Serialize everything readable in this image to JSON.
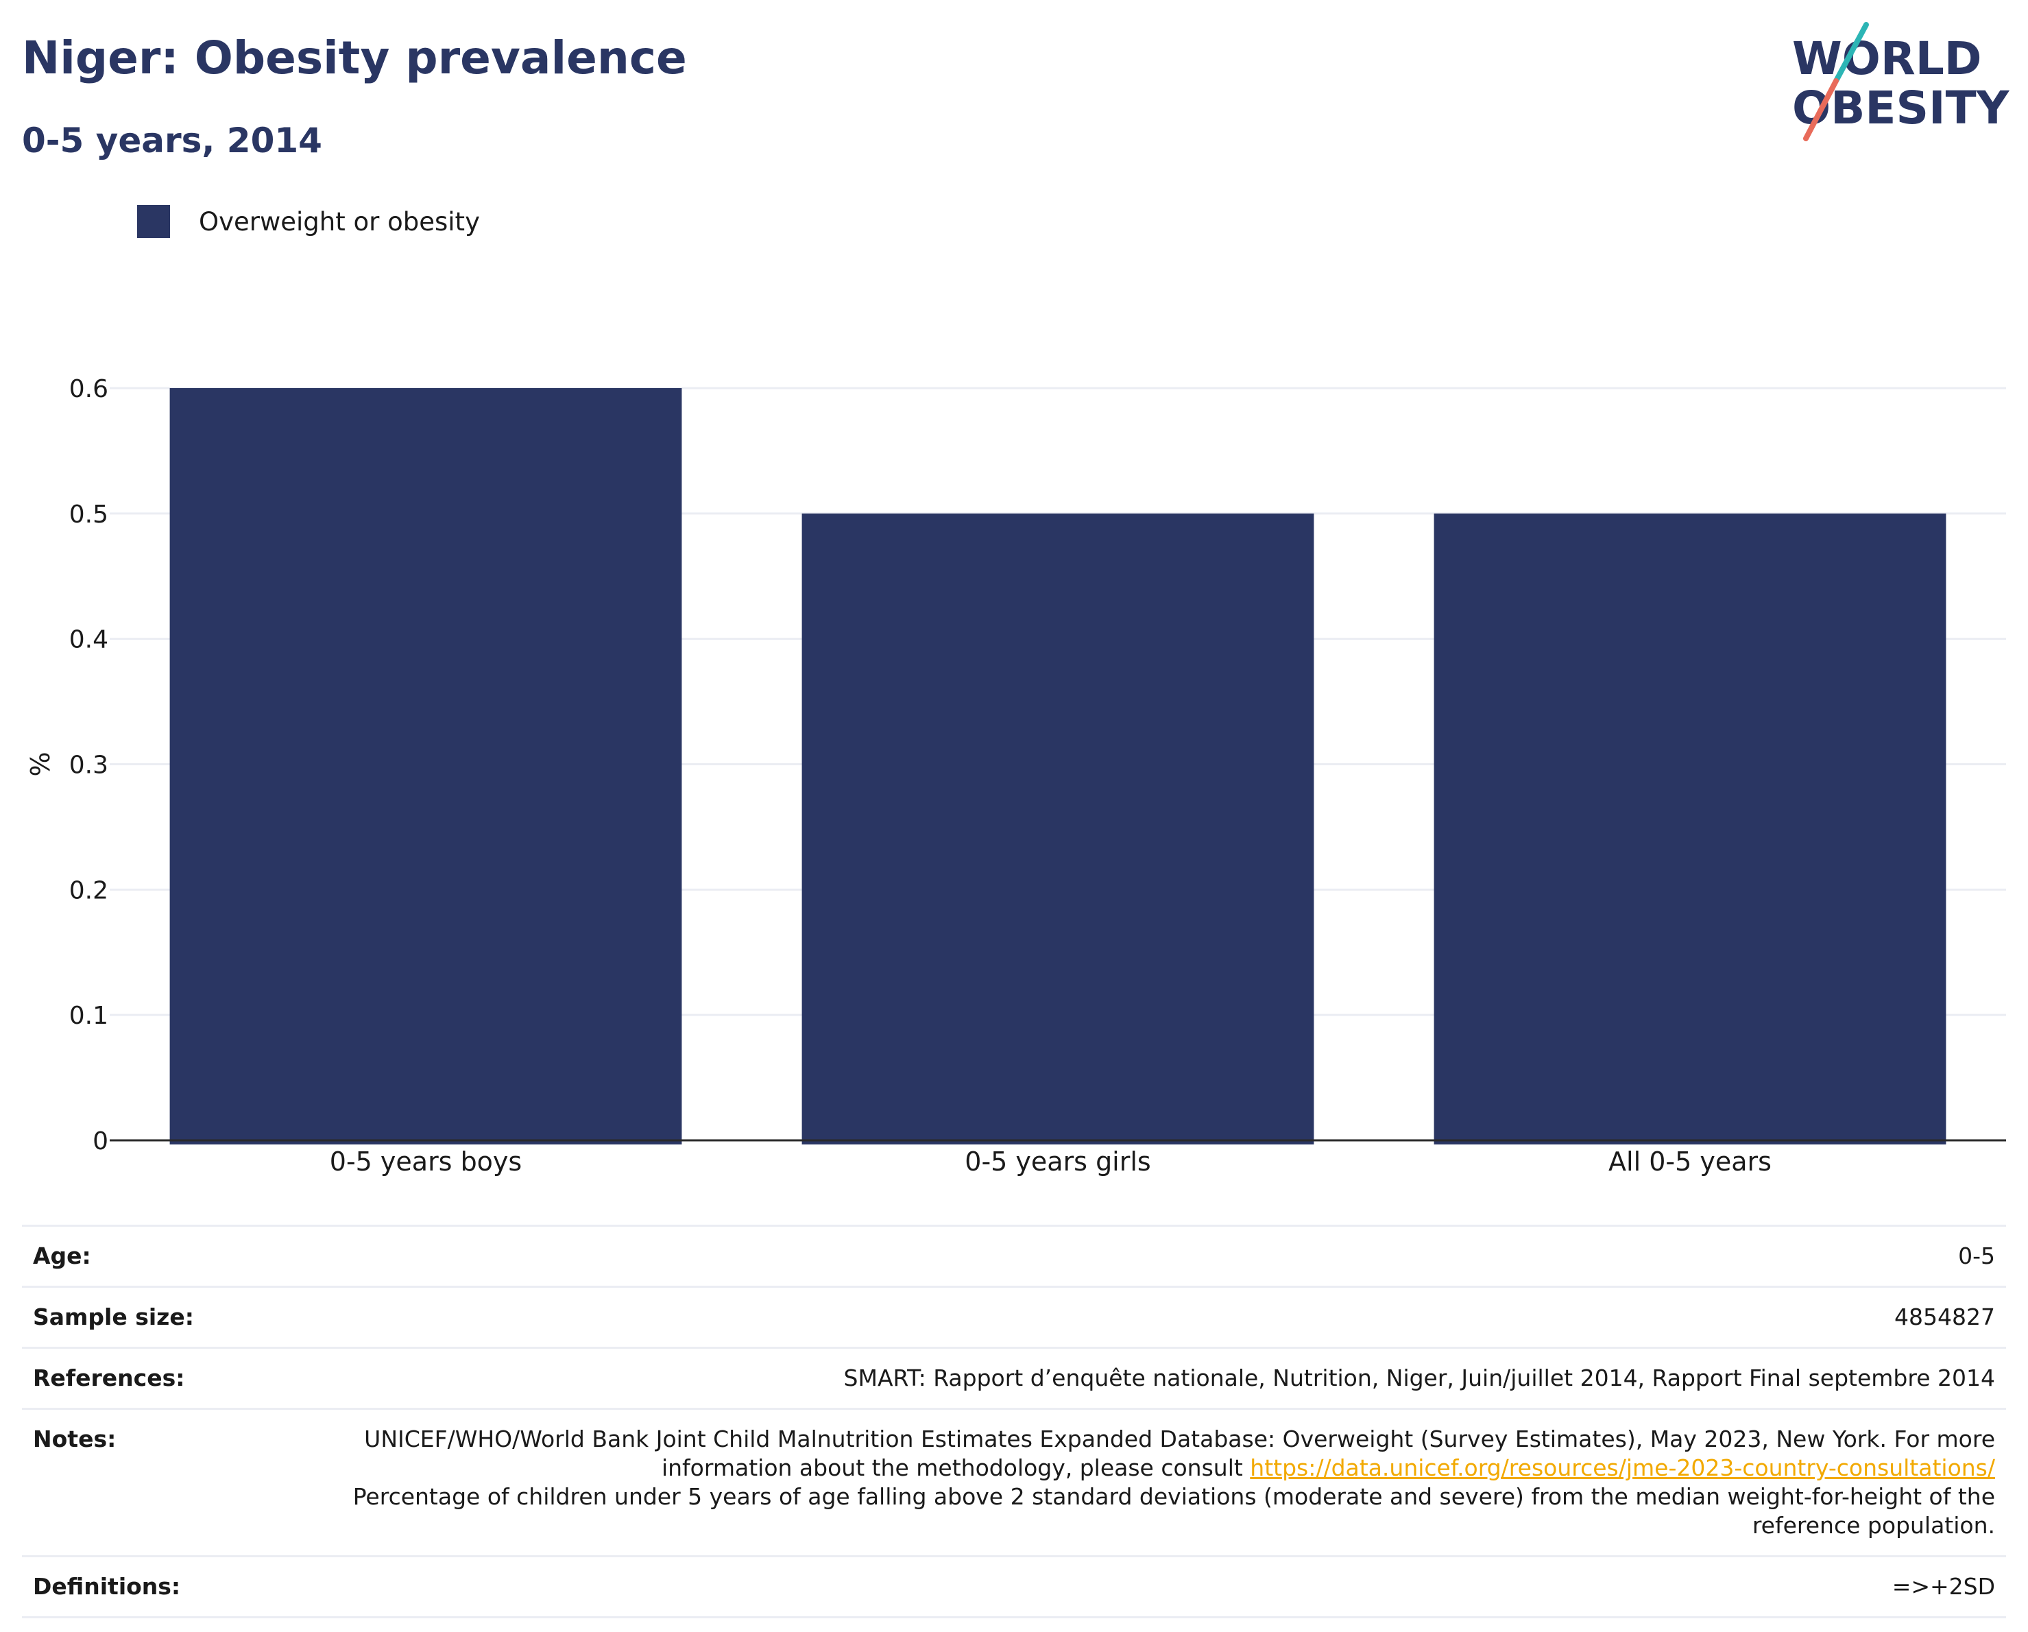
{
  "header": {
    "title": "Niger: Obesity prevalence",
    "subtitle": "0-5 years, 2014"
  },
  "logo": {
    "line1": "WORLD",
    "line2": "OBESITY",
    "teal": "#2cb5b5",
    "coral": "#e86b5a"
  },
  "colors": {
    "bar": "#2a3663",
    "grid": "#ebedf3",
    "axis": "#2a2a2a",
    "link": "#f2a900"
  },
  "chart_data": {
    "type": "bar",
    "categories": [
      "0-5 years boys",
      "0-5 years girls",
      "All 0-5 years"
    ],
    "series": [
      {
        "name": "Overweight or obesity",
        "values": [
          0.6,
          0.5,
          0.5
        ],
        "color": "#2a3663"
      }
    ],
    "ylabel": "%",
    "xlabel": "",
    "ylim": [
      0,
      0.6
    ],
    "yticks": [
      0,
      0.1,
      0.2,
      0.3,
      0.4,
      0.5,
      0.6
    ],
    "ytick_labels": [
      "0",
      "0.1",
      "0.2",
      "0.3",
      "0.4",
      "0.5",
      "0.6"
    ],
    "grid": true,
    "legend_position": "top-left"
  },
  "info": {
    "age_label": "Age:",
    "age_value": "0-5",
    "sample_label": "Sample size:",
    "sample_value": "4854827",
    "references_label": "References:",
    "references_value": "SMART: Rapport d’enquête nationale, Nutrition, Niger, Juin/juillet 2014, Rapport Final septembre 2014",
    "notes_label": "Notes:",
    "notes_text1": "UNICEF/WHO/World Bank Joint Child Malnutrition Estimates Expanded Database: Overweight (Survey Estimates), May 2023, New York. For more information about the methodology, please consult ",
    "notes_link": "https://data.unicef.org/resources/jme-2023-country-consultations/",
    "notes_text2": "Percentage of children under 5 years of age falling above 2 standard deviations (moderate and severe) from the median weight-for-height of the reference population.",
    "definitions_label": "Definitions:",
    "definitions_value": "=>+2SD"
  }
}
